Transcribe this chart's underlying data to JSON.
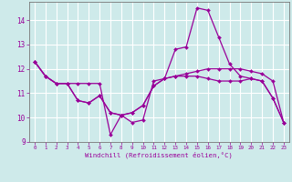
{
  "xlabel": "Windchill (Refroidissement éolien,°C)",
  "background_color": "#ceeaea",
  "grid_color": "#ffffff",
  "line_color": "#990099",
  "xlim": [
    -0.5,
    23.5
  ],
  "ylim": [
    9.0,
    14.75
  ],
  "yticks": [
    9,
    10,
    11,
    12,
    13,
    14
  ],
  "xticks": [
    0,
    1,
    2,
    3,
    4,
    5,
    6,
    7,
    8,
    9,
    10,
    11,
    12,
    13,
    14,
    15,
    16,
    17,
    18,
    19,
    20,
    21,
    22,
    23
  ],
  "line1_x": [
    0,
    1,
    2,
    3,
    4,
    5,
    6,
    7,
    8,
    9,
    10,
    11,
    12,
    13,
    14,
    15,
    16,
    17,
    18,
    19,
    20,
    21,
    22,
    23
  ],
  "line1_y": [
    12.3,
    11.7,
    11.4,
    11.4,
    11.4,
    11.4,
    11.4,
    9.3,
    10.1,
    9.8,
    9.9,
    11.5,
    11.6,
    12.8,
    12.9,
    14.5,
    14.4,
    13.3,
    12.2,
    11.7,
    11.6,
    11.5,
    10.8,
    9.8
  ],
  "line2_x": [
    0,
    1,
    2,
    3,
    4,
    5,
    6,
    7,
    8,
    9,
    10,
    11,
    12,
    13,
    14,
    15,
    16,
    17,
    18,
    19,
    20,
    21,
    22,
    23
  ],
  "line2_y": [
    12.3,
    11.7,
    11.4,
    11.4,
    10.7,
    10.6,
    10.9,
    10.2,
    10.1,
    10.2,
    10.5,
    11.3,
    11.6,
    11.7,
    11.8,
    11.9,
    12.0,
    12.0,
    12.0,
    12.0,
    11.9,
    11.8,
    11.5,
    9.8
  ],
  "line3_x": [
    0,
    1,
    2,
    3,
    4,
    5,
    6,
    7,
    8,
    9,
    10,
    11,
    12,
    13,
    14,
    15,
    16,
    17,
    18,
    19,
    20,
    21,
    22,
    23
  ],
  "line3_y": [
    12.3,
    11.7,
    11.4,
    11.4,
    10.7,
    10.6,
    10.9,
    10.2,
    10.1,
    10.2,
    10.5,
    11.3,
    11.6,
    11.7,
    11.7,
    11.7,
    11.6,
    11.5,
    11.5,
    11.5,
    11.6,
    11.5,
    10.8,
    9.8
  ]
}
